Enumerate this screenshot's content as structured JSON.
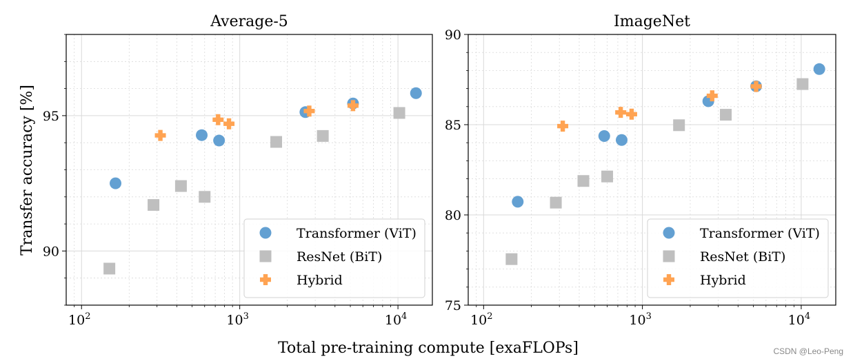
{
  "figure": {
    "ylabel": "Transfer accuracy [%]",
    "xlabel": "Total pre-training compute [exaFLOPs]",
    "watermark": "CSDN @Leo-Peng"
  },
  "legend": [
    {
      "label": "Transformer (ViT)",
      "marker": "circle",
      "color": "#5b9bd0"
    },
    {
      "label": "ResNet (BiT)",
      "marker": "square",
      "color": "#bfbfbf"
    },
    {
      "label": "Hybrid",
      "marker": "plus",
      "color": "#ffa352"
    }
  ],
  "colors": {
    "vit": "#5b9bd0",
    "bit": "#bfbfbf",
    "hybrid": "#ffa352",
    "grid": "#d9d9d9"
  },
  "chart_data": [
    {
      "type": "scatter",
      "title": "Average-5",
      "xscale": "log",
      "xlim": [
        80,
        16500
      ],
      "ylim": [
        88,
        98
      ],
      "yticks": [
        90,
        95
      ],
      "yminor_step": 1,
      "xticks": [
        {
          "value": 100,
          "base": "10",
          "exp": "2"
        },
        {
          "value": 1000,
          "base": "10",
          "exp": "3"
        },
        {
          "value": 10000,
          "base": "10",
          "exp": "4"
        }
      ],
      "grid": true,
      "legend_position": "lower-right",
      "series": [
        {
          "name": "Transformer (ViT)",
          "marker": "circle",
          "color": "#5b9bd0",
          "points": [
            [
              164,
              92.5
            ],
            [
              575,
              94.28
            ],
            [
              740,
              94.08
            ],
            [
              2600,
              95.13
            ],
            [
              5200,
              95.45
            ],
            [
              13000,
              95.83
            ]
          ]
        },
        {
          "name": "ResNet (BiT)",
          "marker": "square",
          "color": "#bfbfbf",
          "points": [
            [
              150,
              89.35
            ],
            [
              285,
              91.7
            ],
            [
              425,
              92.4
            ],
            [
              600,
              92.0
            ],
            [
              1700,
              94.03
            ],
            [
              3350,
              94.25
            ],
            [
              10200,
              95.1
            ]
          ]
        },
        {
          "name": "Hybrid",
          "marker": "plus",
          "color": "#ffa352",
          "points": [
            [
              315,
              94.27
            ],
            [
              730,
              94.85
            ],
            [
              855,
              94.7
            ],
            [
              2750,
              95.17
            ],
            [
              5200,
              95.37
            ]
          ]
        }
      ]
    },
    {
      "type": "scatter",
      "title": "ImageNet",
      "xscale": "log",
      "xlim": [
        80,
        16500
      ],
      "ylim": [
        75,
        90
      ],
      "yticks": [
        75,
        80,
        85,
        90
      ],
      "yminor_step": 1,
      "xticks": [
        {
          "value": 100,
          "base": "10",
          "exp": "2"
        },
        {
          "value": 1000,
          "base": "10",
          "exp": "3"
        },
        {
          "value": 10000,
          "base": "10",
          "exp": "4"
        }
      ],
      "grid": true,
      "legend_position": "lower-right",
      "series": [
        {
          "name": "Transformer (ViT)",
          "marker": "circle",
          "color": "#5b9bd0",
          "points": [
            [
              164,
              80.73
            ],
            [
              575,
              84.37
            ],
            [
              740,
              84.15
            ],
            [
              2600,
              86.3
            ],
            [
              5200,
              87.13
            ],
            [
              13000,
              88.08
            ]
          ]
        },
        {
          "name": "ResNet (BiT)",
          "marker": "square",
          "color": "#bfbfbf",
          "points": [
            [
              150,
              77.55
            ],
            [
              285,
              80.68
            ],
            [
              425,
              81.88
            ],
            [
              600,
              82.13
            ],
            [
              1700,
              84.97
            ],
            [
              3350,
              85.55
            ],
            [
              10200,
              87.25
            ]
          ]
        },
        {
          "name": "Hybrid",
          "marker": "plus",
          "color": "#ffa352",
          "points": [
            [
              315,
              84.92
            ],
            [
              730,
              85.68
            ],
            [
              855,
              85.58
            ],
            [
              2750,
              86.6
            ],
            [
              5200,
              87.12
            ]
          ]
        }
      ]
    }
  ]
}
